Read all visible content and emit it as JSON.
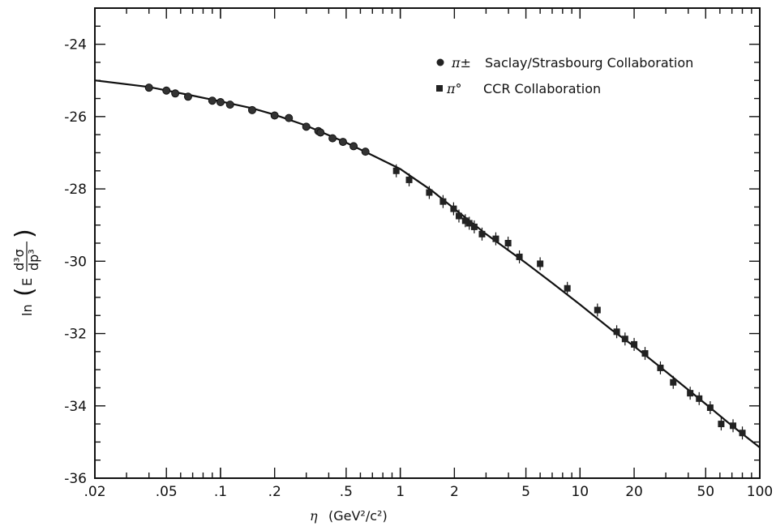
{
  "chart_data": {
    "type": "scatter",
    "xscale": "log",
    "xlim": [
      0.02,
      100
    ],
    "ylim": [
      -36,
      -23
    ],
    "grid": false,
    "legend_position": "top-right",
    "xlabel": {
      "symbol": "η",
      "unit": "(GeV²/c²)"
    },
    "ylabel": {
      "func": "ln",
      "prefix": "E",
      "num": "d³σ",
      "den": "dp³"
    },
    "x_ticks": [
      {
        "value": 0.02,
        "label": ".02"
      },
      {
        "value": 0.05,
        "label": ".05"
      },
      {
        "value": 0.1,
        "label": ".1"
      },
      {
        "value": 0.2,
        "label": ".2"
      },
      {
        "value": 0.5,
        "label": ".5"
      },
      {
        "value": 1,
        "label": "1"
      },
      {
        "value": 2,
        "label": "2"
      },
      {
        "value": 5,
        "label": "5"
      },
      {
        "value": 10,
        "label": "10"
      },
      {
        "value": 20,
        "label": "20"
      },
      {
        "value": 50,
        "label": "50"
      },
      {
        "value": 100,
        "label": "100"
      }
    ],
    "y_ticks": [
      {
        "value": -24,
        "label": "-24"
      },
      {
        "value": -26,
        "label": "-26"
      },
      {
        "value": -28,
        "label": "-28"
      },
      {
        "value": -30,
        "label": "-30"
      },
      {
        "value": -32,
        "label": "-32"
      },
      {
        "value": -34,
        "label": "-34"
      },
      {
        "value": -36,
        "label": "-36"
      }
    ],
    "series": [
      {
        "name": "Saclay/Strasbourg Collaboration",
        "symbol": "π±",
        "marker": "circle",
        "points": [
          [
            0.04,
            -25.2
          ],
          [
            0.05,
            -25.28
          ],
          [
            0.056,
            -25.36
          ],
          [
            0.066,
            -25.45
          ],
          [
            0.09,
            -25.56
          ],
          [
            0.1,
            -25.6
          ],
          [
            0.113,
            -25.67
          ],
          [
            0.15,
            -25.82
          ],
          [
            0.2,
            -25.97
          ],
          [
            0.24,
            -26.04
          ],
          [
            0.3,
            -26.28
          ],
          [
            0.35,
            -26.4
          ],
          [
            0.36,
            -26.44
          ],
          [
            0.42,
            -26.6
          ],
          [
            0.48,
            -26.7
          ],
          [
            0.55,
            -26.82
          ],
          [
            0.64,
            -26.97
          ]
        ]
      },
      {
        "name": "CCR Collaboration",
        "symbol": "π°",
        "marker": "square",
        "points": [
          [
            0.95,
            -27.5
          ],
          [
            1.12,
            -27.75
          ],
          [
            1.45,
            -28.1
          ],
          [
            1.73,
            -28.35
          ],
          [
            1.98,
            -28.55
          ],
          [
            2.12,
            -28.75
          ],
          [
            2.3,
            -28.88
          ],
          [
            2.42,
            -28.95
          ],
          [
            2.58,
            -29.05
          ],
          [
            2.85,
            -29.25
          ],
          [
            3.4,
            -29.38
          ],
          [
            3.98,
            -29.5
          ],
          [
            4.6,
            -29.88
          ],
          [
            6.0,
            -30.07
          ],
          [
            8.5,
            -30.75
          ],
          [
            12.5,
            -31.35
          ],
          [
            16,
            -31.95
          ],
          [
            17.8,
            -32.15
          ],
          [
            20,
            -32.3
          ],
          [
            23,
            -32.55
          ],
          [
            28,
            -32.95
          ],
          [
            33,
            -33.35
          ],
          [
            41,
            -33.65
          ],
          [
            46,
            -33.8
          ],
          [
            53,
            -34.05
          ],
          [
            61,
            -34.5
          ],
          [
            71,
            -34.55
          ],
          [
            80,
            -34.75
          ]
        ]
      }
    ],
    "curve": [
      [
        0.02,
        -25.0
      ],
      [
        0.04,
        -25.18
      ],
      [
        0.07,
        -25.42
      ],
      [
        0.1,
        -25.58
      ],
      [
        0.15,
        -25.77
      ],
      [
        0.2,
        -25.95
      ],
      [
        0.3,
        -26.25
      ],
      [
        0.5,
        -26.72
      ],
      [
        0.7,
        -27.07
      ],
      [
        1,
        -27.45
      ],
      [
        1.5,
        -28.05
      ],
      [
        2,
        -28.55
      ],
      [
        3,
        -29.25
      ],
      [
        5,
        -30.05
      ],
      [
        7,
        -30.6
      ],
      [
        10,
        -31.2
      ],
      [
        15,
        -31.9
      ],
      [
        20,
        -32.35
      ],
      [
        30,
        -33.05
      ],
      [
        50,
        -33.95
      ],
      [
        70,
        -34.55
      ],
      [
        100,
        -35.15
      ]
    ]
  }
}
